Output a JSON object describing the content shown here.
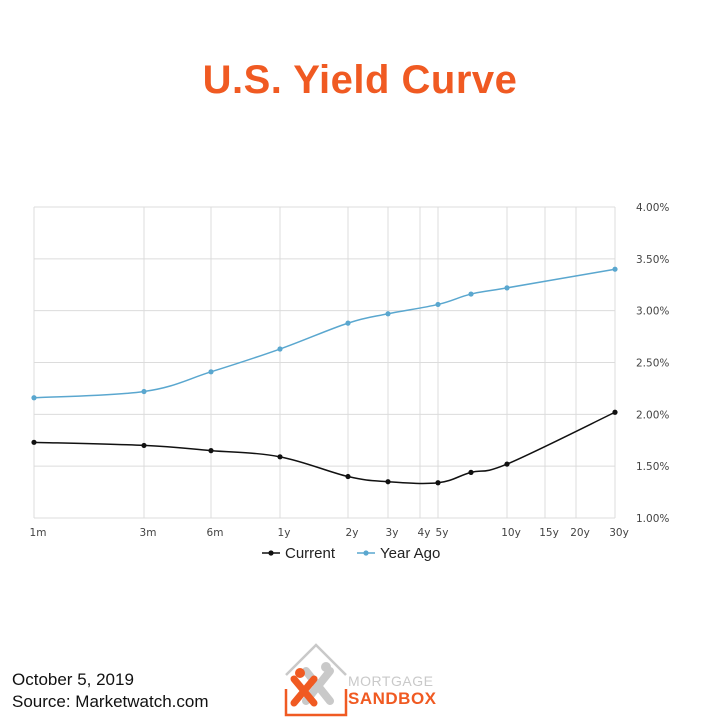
{
  "title": "U.S. Yield Curve",
  "colors": {
    "title": "#f05a22",
    "current": "#111111",
    "year_ago": "#5aa7cf",
    "grid": "#dcdcdc",
    "logo_gray": "#c9c9c9",
    "logo_orange": "#f05a22"
  },
  "chart_data": {
    "type": "line",
    "x": [
      "1m",
      "3m",
      "6m",
      "1y",
      "2y",
      "3y",
      "5y",
      "7y",
      "10y",
      "30y"
    ],
    "x_tick_labels": [
      "1m",
      "3m",
      "6m",
      "1y",
      "2y",
      "3y",
      "4y",
      "5y",
      "10y",
      "15y",
      "20y",
      "30y"
    ],
    "y_tick_labels": [
      "1.00%",
      "1.50%",
      "2.00%",
      "2.50%",
      "3.00%",
      "3.50%",
      "4.00%"
    ],
    "ylim": [
      1.0,
      4.0
    ],
    "y_axis_side": "right",
    "grid": true,
    "legend_position": "bottom",
    "series": [
      {
        "name": "Current",
        "values": [
          1.73,
          1.7,
          1.65,
          1.59,
          1.4,
          1.35,
          1.34,
          1.44,
          1.52,
          2.02
        ]
      },
      {
        "name": "Year Ago",
        "values": [
          2.16,
          2.22,
          2.41,
          2.63,
          2.88,
          2.97,
          3.06,
          3.16,
          3.22,
          3.4
        ]
      }
    ]
  },
  "footer": {
    "date": "October 5, 2019",
    "source": "Source: Marketwatch.com"
  },
  "logo": {
    "line1": "MORTGAGE",
    "line2": "SANDBOX"
  }
}
